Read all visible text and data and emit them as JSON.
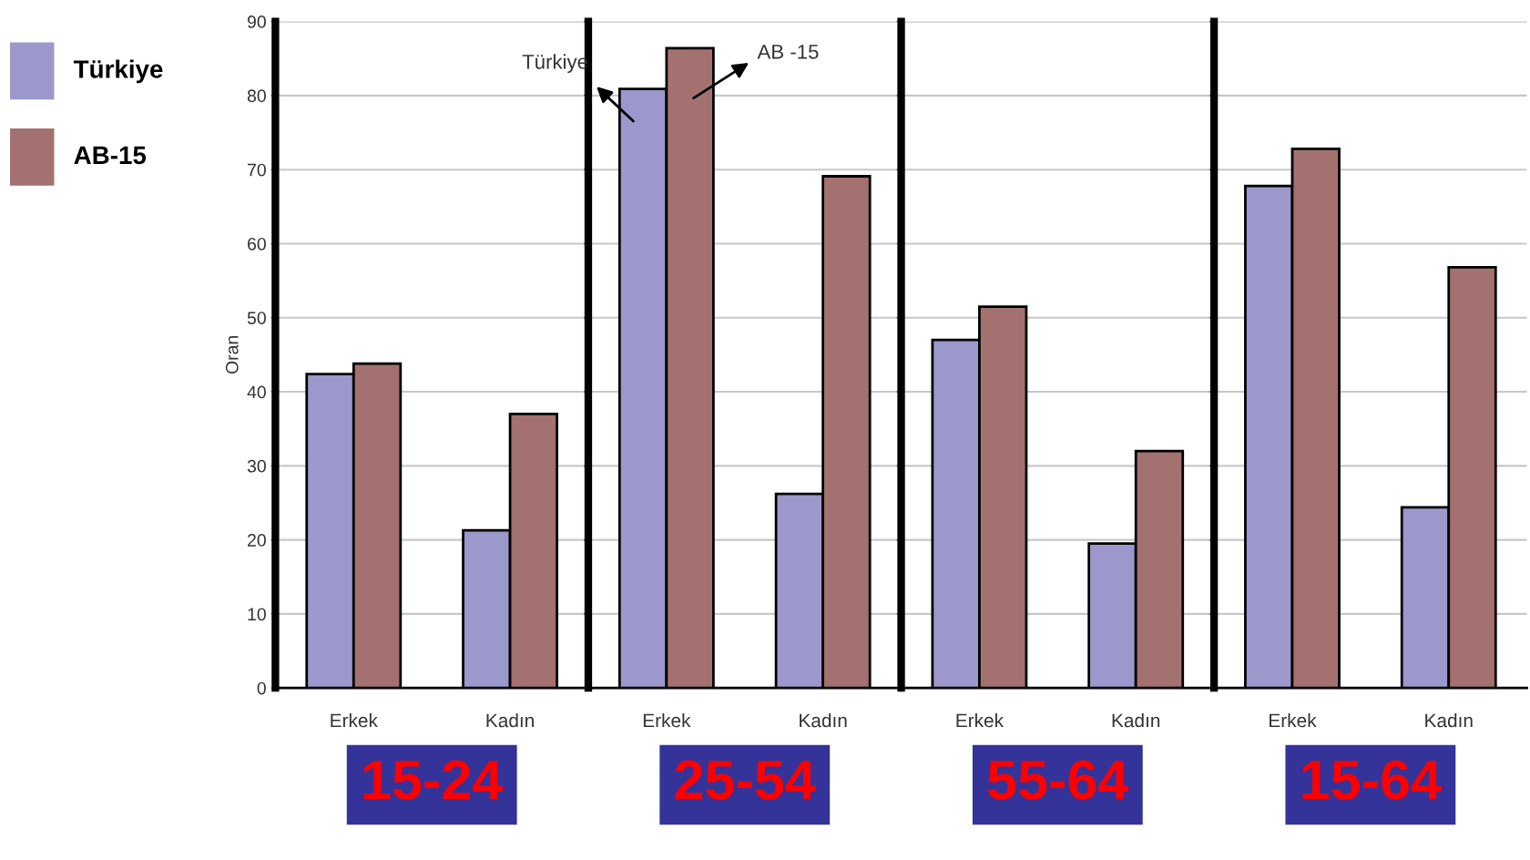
{
  "chart_data": [
    {
      "type": "bar",
      "xlabel": "15-24",
      "ylabel": "Oran",
      "categories": [
        "Erkek",
        "Kadın"
      ],
      "ylim": [
        0,
        90
      ],
      "yticks": [
        0,
        10,
        20,
        30,
        40,
        50,
        60,
        70,
        80,
        90
      ],
      "grid": "y",
      "legend": "left",
      "series": [
        {
          "name": "Türkiye",
          "color": "#9c98cb",
          "values": [
            42.4,
            21.3
          ]
        },
        {
          "name": "AB-15",
          "color": "#a37170",
          "values": [
            43.8,
            37.0
          ]
        }
      ]
    },
    {
      "type": "bar",
      "xlabel": "25-54",
      "categories": [
        "Erkek",
        "Kadın"
      ],
      "ylim": [
        0,
        90
      ],
      "yticks": [
        0,
        10,
        20,
        30,
        40,
        50,
        60,
        70,
        80,
        90
      ],
      "grid": "y",
      "tick_labels": "x",
      "annotations": [
        "Türkiye",
        "AB -15"
      ],
      "series": [
        {
          "color": "#9c98cb",
          "values": [
            80.9,
            26.2
          ]
        },
        {
          "color": "#a37170",
          "values": [
            86.4,
            69.1
          ]
        }
      ]
    },
    {
      "type": "bar",
      "xlabel": "55-64",
      "categories": [
        "Erkek",
        "Kadın"
      ],
      "ylim": [
        0,
        90
      ],
      "yticks": [
        0,
        10,
        20,
        30,
        40,
        50,
        60,
        70,
        80,
        90
      ],
      "grid": "y",
      "tick_labels": "x",
      "series": [
        {
          "color": "#9c98cb",
          "values": [
            47.0,
            19.5
          ]
        },
        {
          "color": "#a37170",
          "values": [
            51.5,
            32.0
          ]
        }
      ]
    },
    {
      "type": "bar",
      "xlabel": "15-64",
      "categories": [
        "Erkek",
        "Kadın"
      ],
      "ylim": [
        0,
        90
      ],
      "yticks": [
        0,
        10,
        20,
        30,
        40,
        50,
        60,
        70,
        80,
        90
      ],
      "grid": "y",
      "tick_labels": "x",
      "series": [
        {
          "color": "#9c98cb",
          "values": [
            67.8,
            24.4
          ]
        },
        {
          "color": "#a37170",
          "values": [
            72.8,
            56.8
          ]
        }
      ]
    }
  ]
}
